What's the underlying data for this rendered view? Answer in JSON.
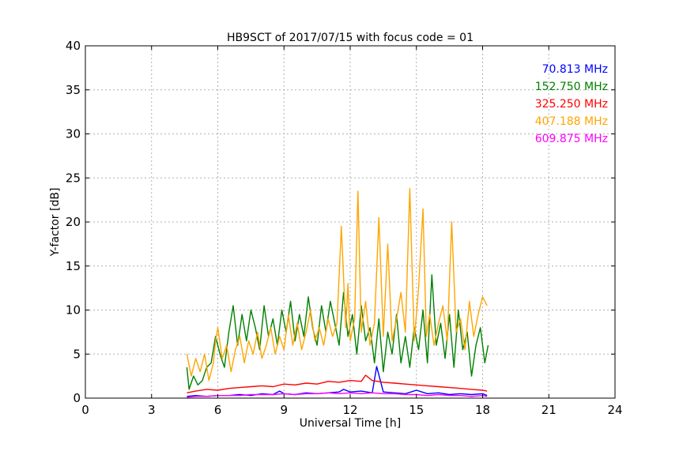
{
  "chart_data": {
    "type": "line",
    "title": "HB9SCT of 2017/07/15 with focus code = 01",
    "xlabel": "Universal Time [h]",
    "ylabel": "Y-factor [dB]",
    "xlim": [
      0,
      24
    ],
    "ylim": [
      0,
      40
    ],
    "xticks": [
      0,
      3,
      6,
      9,
      12,
      15,
      18,
      21,
      24
    ],
    "yticks": [
      0,
      5,
      10,
      15,
      20,
      25,
      30,
      35,
      40
    ],
    "grid": true,
    "legend_position": "top-right",
    "series": [
      {
        "name": "70.813 MHz",
        "color": "#0000ff",
        "x": [
          4.6,
          5.0,
          5.5,
          6.0,
          6.5,
          7.0,
          7.5,
          8.0,
          8.5,
          8.8,
          9.0,
          9.5,
          10.0,
          10.5,
          11.0,
          11.5,
          11.7,
          12.0,
          12.5,
          13.0,
          13.2,
          13.5,
          14.0,
          14.5,
          15.0,
          15.5,
          16.0,
          16.5,
          17.0,
          17.5,
          18.0,
          18.2
        ],
        "y": [
          0.2,
          0.3,
          0.2,
          0.3,
          0.3,
          0.4,
          0.3,
          0.5,
          0.4,
          0.8,
          0.5,
          0.4,
          0.6,
          0.5,
          0.6,
          0.7,
          1.0,
          0.7,
          0.8,
          0.6,
          3.6,
          0.7,
          0.6,
          0.5,
          0.9,
          0.5,
          0.6,
          0.4,
          0.5,
          0.4,
          0.5,
          0.3
        ]
      },
      {
        "name": "152.750 MHz",
        "color": "#008000",
        "x": [
          4.6,
          4.7,
          4.9,
          5.1,
          5.3,
          5.5,
          5.7,
          5.9,
          6.1,
          6.3,
          6.5,
          6.7,
          6.9,
          7.1,
          7.3,
          7.5,
          7.7,
          7.9,
          8.1,
          8.3,
          8.5,
          8.7,
          8.9,
          9.1,
          9.3,
          9.5,
          9.7,
          9.9,
          10.1,
          10.3,
          10.5,
          10.7,
          10.9,
          11.1,
          11.3,
          11.5,
          11.7,
          11.9,
          12.1,
          12.3,
          12.5,
          12.7,
          12.9,
          13.1,
          13.3,
          13.5,
          13.7,
          13.9,
          14.1,
          14.3,
          14.5,
          14.7,
          14.9,
          15.1,
          15.3,
          15.5,
          15.7,
          15.9,
          16.1,
          16.3,
          16.5,
          16.7,
          16.9,
          17.1,
          17.3,
          17.5,
          17.7,
          17.9,
          18.1,
          18.25
        ],
        "y": [
          3.5,
          1.0,
          2.5,
          1.5,
          2.0,
          3.5,
          4.0,
          7.0,
          5.0,
          3.5,
          7.5,
          10.5,
          6.0,
          9.5,
          6.5,
          10.0,
          8.0,
          5.5,
          10.5,
          7.0,
          9.0,
          6.0,
          10.0,
          7.5,
          11.0,
          6.5,
          9.5,
          7.0,
          11.5,
          8.0,
          6.0,
          10.5,
          7.5,
          11.0,
          8.5,
          6.0,
          12.0,
          7.0,
          9.5,
          5.0,
          10.5,
          6.5,
          8.0,
          4.0,
          9.0,
          3.0,
          7.5,
          5.0,
          9.5,
          4.0,
          7.0,
          3.5,
          8.0,
          5.5,
          10.0,
          4.0,
          14.0,
          6.0,
          8.5,
          4.5,
          9.5,
          3.5,
          10.0,
          5.5,
          7.5,
          2.5,
          6.0,
          8.0,
          4.0,
          6.0
        ]
      },
      {
        "name": "325.250 MHz",
        "color": "#ff0000",
        "x": [
          4.6,
          5.0,
          5.5,
          6.0,
          6.5,
          7.0,
          7.5,
          8.0,
          8.5,
          9.0,
          9.5,
          10.0,
          10.5,
          11.0,
          11.5,
          12.0,
          12.5,
          12.7,
          13.0,
          13.5,
          14.0,
          14.5,
          15.0,
          15.5,
          16.0,
          16.5,
          17.0,
          17.5,
          18.0,
          18.2
        ],
        "y": [
          0.6,
          0.8,
          1.0,
          0.9,
          1.1,
          1.2,
          1.3,
          1.4,
          1.3,
          1.6,
          1.5,
          1.7,
          1.6,
          1.9,
          1.8,
          2.0,
          1.9,
          2.6,
          2.0,
          1.8,
          1.7,
          1.6,
          1.5,
          1.4,
          1.3,
          1.2,
          1.1,
          1.0,
          0.9,
          0.8
        ]
      },
      {
        "name": "407.188 MHz",
        "color": "#ffa500",
        "x": [
          4.6,
          4.8,
          5.0,
          5.2,
          5.4,
          5.6,
          5.8,
          5.9,
          6.0,
          6.2,
          6.4,
          6.6,
          6.8,
          7.0,
          7.2,
          7.4,
          7.6,
          7.8,
          8.0,
          8.2,
          8.4,
          8.6,
          8.8,
          9.0,
          9.2,
          9.4,
          9.6,
          9.8,
          10.0,
          10.2,
          10.4,
          10.6,
          10.8,
          11.0,
          11.2,
          11.4,
          11.6,
          11.8,
          11.9,
          12.0,
          12.2,
          12.35,
          12.5,
          12.7,
          12.9,
          13.1,
          13.3,
          13.5,
          13.7,
          13.9,
          14.1,
          14.3,
          14.5,
          14.7,
          14.9,
          15.1,
          15.3,
          15.45,
          15.6,
          15.8,
          16.0,
          16.2,
          16.4,
          16.6,
          16.8,
          17.0,
          17.2,
          17.4,
          17.6,
          17.8,
          18.0,
          18.2
        ],
        "y": [
          5.0,
          2.5,
          4.5,
          3.0,
          5.0,
          2.0,
          4.0,
          6.5,
          8.0,
          4.5,
          6.0,
          3.0,
          5.5,
          7.0,
          4.0,
          6.5,
          5.0,
          7.5,
          4.5,
          6.0,
          8.0,
          5.0,
          7.0,
          5.5,
          9.5,
          6.0,
          8.5,
          5.5,
          7.5,
          10.0,
          6.5,
          8.0,
          6.0,
          9.0,
          7.0,
          8.5,
          19.5,
          8.0,
          13.0,
          6.5,
          9.0,
          23.5,
          7.5,
          11.0,
          6.0,
          8.5,
          20.5,
          7.0,
          17.5,
          6.5,
          9.0,
          12.0,
          7.5,
          23.8,
          6.5,
          12.5,
          21.5,
          7.0,
          9.5,
          6.0,
          8.5,
          10.5,
          6.5,
          20.0,
          7.5,
          9.0,
          5.5,
          11.0,
          7.0,
          9.5,
          11.5,
          10.5
        ]
      },
      {
        "name": "609.875 MHz",
        "color": "#ff00ff",
        "x": [
          4.6,
          5.0,
          5.5,
          6.0,
          6.5,
          7.0,
          7.5,
          8.0,
          8.5,
          9.0,
          9.5,
          10.0,
          10.5,
          11.0,
          11.5,
          12.0,
          12.5,
          13.0,
          13.5,
          14.0,
          14.5,
          15.0,
          15.5,
          16.0,
          16.5,
          17.0,
          17.5,
          18.0,
          18.2
        ],
        "y": [
          0.1,
          0.2,
          0.2,
          0.3,
          0.3,
          0.3,
          0.4,
          0.4,
          0.4,
          0.5,
          0.4,
          0.5,
          0.5,
          0.6,
          0.5,
          0.6,
          0.5,
          0.6,
          0.5,
          0.5,
          0.4,
          0.4,
          0.3,
          0.4,
          0.3,
          0.3,
          0.2,
          0.3,
          0.2
        ]
      }
    ]
  }
}
